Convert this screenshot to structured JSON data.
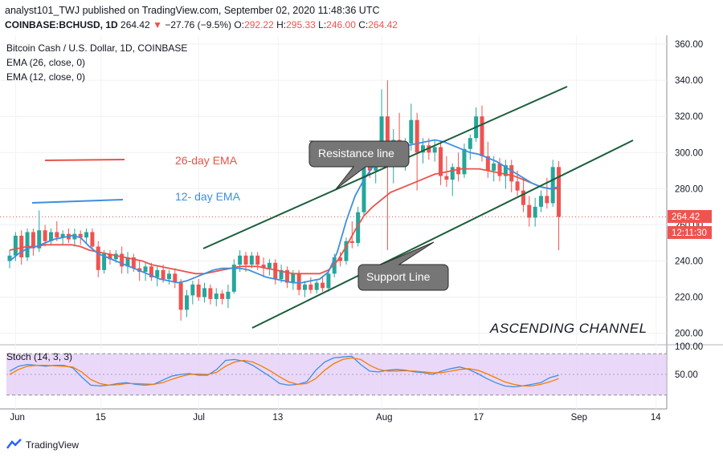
{
  "header": {
    "publisher_line": "analyst101_TWJ published on TradingView.com, September 02, 2020 11:48:36 UTC",
    "symbol": "COINBASE:BCHUSD, 1D",
    "last": "264.42",
    "change_arrow": "▼",
    "change": "−27.76 (−9.5%)",
    "open_label": "O:",
    "open": "292.22",
    "high_label": "H:",
    "high": "295.33",
    "low_label": "L:",
    "low": "246.00",
    "close_label": "C:",
    "close": "264.42"
  },
  "legend": {
    "instrument": "Bitcoin Cash / U.S. Dollar, 1D, COINBASE",
    "ema26_label": "EMA (26, close, 0)",
    "ema12_label": "EMA (12, close, 0)",
    "stoch_label": "Stoch (14, 3, 3)"
  },
  "annotations": {
    "ema26_text": "26-day EMA",
    "ema12_text": "12- day EMA",
    "resistance": "Resistance line",
    "support": "Support Line",
    "channel": "ASCENDING CHANNEL",
    "ema26_color": "#e8534a",
    "ema12_color": "#3d8fe0",
    "channel_color": "#1a5e3a"
  },
  "price_badges": {
    "last": "264.42",
    "countdown": "12:11:30"
  },
  "footer": {
    "brand": "TradingView"
  },
  "chart_data": [
    {
      "type": "candlestick",
      "title": "Bitcoin Cash / U.S. Dollar, 1D, COINBASE",
      "x_tick_labels": [
        "Jun",
        "15",
        "Jul",
        "13",
        "Aug",
        "17",
        "Sep",
        "14"
      ],
      "y_tick_labels": [
        "200.00",
        "220.00",
        "240.00",
        "260.00",
        "280.00",
        "300.00",
        "320.00",
        "340.00",
        "360.00"
      ],
      "ylim": [
        195,
        364
      ],
      "date_range": [
        "2020-05-29",
        "2020-09-02"
      ],
      "candles": [
        {
          "o": 240,
          "h": 246,
          "l": 236,
          "c": 243
        },
        {
          "o": 243,
          "h": 256,
          "l": 240,
          "c": 254
        },
        {
          "o": 254,
          "h": 257,
          "l": 238,
          "c": 242
        },
        {
          "o": 242,
          "h": 258,
          "l": 240,
          "c": 256
        },
        {
          "o": 256,
          "h": 258,
          "l": 243,
          "c": 247
        },
        {
          "o": 247,
          "h": 268,
          "l": 245,
          "c": 257
        },
        {
          "o": 257,
          "h": 260,
          "l": 248,
          "c": 251
        },
        {
          "o": 251,
          "h": 258,
          "l": 249,
          "c": 256
        },
        {
          "o": 256,
          "h": 262,
          "l": 251,
          "c": 253
        },
        {
          "o": 253,
          "h": 257,
          "l": 249,
          "c": 255
        },
        {
          "o": 255,
          "h": 258,
          "l": 250,
          "c": 252
        },
        {
          "o": 252,
          "h": 258,
          "l": 248,
          "c": 255
        },
        {
          "o": 255,
          "h": 257,
          "l": 249,
          "c": 253
        },
        {
          "o": 253,
          "h": 258,
          "l": 250,
          "c": 256
        },
        {
          "o": 256,
          "h": 258,
          "l": 247,
          "c": 248
        },
        {
          "o": 248,
          "h": 251,
          "l": 231,
          "c": 235
        },
        {
          "o": 235,
          "h": 246,
          "l": 233,
          "c": 244
        },
        {
          "o": 244,
          "h": 246,
          "l": 238,
          "c": 241
        },
        {
          "o": 241,
          "h": 246,
          "l": 239,
          "c": 244
        },
        {
          "o": 244,
          "h": 248,
          "l": 233,
          "c": 237
        },
        {
          "o": 237,
          "h": 245,
          "l": 233,
          "c": 242
        },
        {
          "o": 242,
          "h": 244,
          "l": 234,
          "c": 236
        },
        {
          "o": 236,
          "h": 240,
          "l": 229,
          "c": 234
        },
        {
          "o": 234,
          "h": 239,
          "l": 229,
          "c": 237
        },
        {
          "o": 237,
          "h": 239,
          "l": 229,
          "c": 231
        },
        {
          "o": 231,
          "h": 237,
          "l": 226,
          "c": 235
        },
        {
          "o": 235,
          "h": 238,
          "l": 228,
          "c": 230
        },
        {
          "o": 230,
          "h": 235,
          "l": 227,
          "c": 233
        },
        {
          "o": 233,
          "h": 236,
          "l": 225,
          "c": 228
        },
        {
          "o": 228,
          "h": 230,
          "l": 207,
          "c": 213
        },
        {
          "o": 213,
          "h": 224,
          "l": 209,
          "c": 221
        },
        {
          "o": 221,
          "h": 229,
          "l": 216,
          "c": 227
        },
        {
          "o": 227,
          "h": 230,
          "l": 218,
          "c": 220
        },
        {
          "o": 220,
          "h": 228,
          "l": 217,
          "c": 225
        },
        {
          "o": 225,
          "h": 227,
          "l": 216,
          "c": 219
        },
        {
          "o": 219,
          "h": 225,
          "l": 215,
          "c": 222
        },
        {
          "o": 222,
          "h": 224,
          "l": 216,
          "c": 219
        },
        {
          "o": 219,
          "h": 227,
          "l": 214,
          "c": 223
        },
        {
          "o": 223,
          "h": 241,
          "l": 222,
          "c": 238
        },
        {
          "o": 238,
          "h": 246,
          "l": 234,
          "c": 243
        },
        {
          "o": 243,
          "h": 245,
          "l": 234,
          "c": 238
        },
        {
          "o": 238,
          "h": 245,
          "l": 236,
          "c": 243
        },
        {
          "o": 243,
          "h": 245,
          "l": 235,
          "c": 238
        },
        {
          "o": 238,
          "h": 242,
          "l": 231,
          "c": 236
        },
        {
          "o": 236,
          "h": 241,
          "l": 232,
          "c": 239
        },
        {
          "o": 239,
          "h": 241,
          "l": 227,
          "c": 230
        },
        {
          "o": 230,
          "h": 238,
          "l": 228,
          "c": 235
        },
        {
          "o": 235,
          "h": 237,
          "l": 225,
          "c": 228
        },
        {
          "o": 228,
          "h": 235,
          "l": 224,
          "c": 233
        },
        {
          "o": 233,
          "h": 235,
          "l": 221,
          "c": 224
        },
        {
          "o": 224,
          "h": 229,
          "l": 220,
          "c": 227
        },
        {
          "o": 227,
          "h": 231,
          "l": 222,
          "c": 224
        },
        {
          "o": 224,
          "h": 230,
          "l": 222,
          "c": 228
        },
        {
          "o": 228,
          "h": 231,
          "l": 223,
          "c": 225
        },
        {
          "o": 225,
          "h": 235,
          "l": 223,
          "c": 233
        },
        {
          "o": 233,
          "h": 244,
          "l": 231,
          "c": 242
        },
        {
          "o": 242,
          "h": 245,
          "l": 237,
          "c": 240
        },
        {
          "o": 240,
          "h": 253,
          "l": 238,
          "c": 251
        },
        {
          "o": 251,
          "h": 262,
          "l": 247,
          "c": 250
        },
        {
          "o": 250,
          "h": 270,
          "l": 248,
          "c": 267
        },
        {
          "o": 267,
          "h": 300,
          "l": 265,
          "c": 295
        },
        {
          "o": 295,
          "h": 306,
          "l": 286,
          "c": 290
        },
        {
          "o": 290,
          "h": 303,
          "l": 283,
          "c": 298
        },
        {
          "o": 298,
          "h": 335,
          "l": 293,
          "c": 320
        },
        {
          "o": 320,
          "h": 340,
          "l": 246,
          "c": 295
        },
        {
          "o": 295,
          "h": 313,
          "l": 283,
          "c": 307
        },
        {
          "o": 307,
          "h": 322,
          "l": 295,
          "c": 298
        },
        {
          "o": 298,
          "h": 308,
          "l": 290,
          "c": 305
        },
        {
          "o": 305,
          "h": 327,
          "l": 301,
          "c": 318
        },
        {
          "o": 318,
          "h": 322,
          "l": 279,
          "c": 300
        },
        {
          "o": 300,
          "h": 308,
          "l": 294,
          "c": 304
        },
        {
          "o": 304,
          "h": 308,
          "l": 296,
          "c": 300
        },
        {
          "o": 300,
          "h": 307,
          "l": 295,
          "c": 303
        },
        {
          "o": 303,
          "h": 306,
          "l": 282,
          "c": 287
        },
        {
          "o": 287,
          "h": 298,
          "l": 281,
          "c": 285
        },
        {
          "o": 285,
          "h": 294,
          "l": 276,
          "c": 292
        },
        {
          "o": 292,
          "h": 300,
          "l": 284,
          "c": 288
        },
        {
          "o": 288,
          "h": 305,
          "l": 286,
          "c": 302
        },
        {
          "o": 302,
          "h": 310,
          "l": 296,
          "c": 308
        },
        {
          "o": 308,
          "h": 325,
          "l": 306,
          "c": 320
        },
        {
          "o": 320,
          "h": 326,
          "l": 295,
          "c": 298
        },
        {
          "o": 298,
          "h": 306,
          "l": 286,
          "c": 290
        },
        {
          "o": 290,
          "h": 298,
          "l": 284,
          "c": 294
        },
        {
          "o": 294,
          "h": 297,
          "l": 284,
          "c": 287
        },
        {
          "o": 287,
          "h": 296,
          "l": 280,
          "c": 293
        },
        {
          "o": 293,
          "h": 296,
          "l": 278,
          "c": 284
        },
        {
          "o": 284,
          "h": 290,
          "l": 276,
          "c": 279
        },
        {
          "o": 279,
          "h": 286,
          "l": 267,
          "c": 271
        },
        {
          "o": 271,
          "h": 276,
          "l": 259,
          "c": 264
        },
        {
          "o": 264,
          "h": 275,
          "l": 259,
          "c": 270
        },
        {
          "o": 270,
          "h": 279,
          "l": 267,
          "c": 276
        },
        {
          "o": 276,
          "h": 286,
          "l": 269,
          "c": 272
        },
        {
          "o": 272,
          "h": 296,
          "l": 270,
          "c": 292
        },
        {
          "o": 292,
          "h": 295.33,
          "l": 246,
          "c": 264.42
        }
      ],
      "series": [
        {
          "name": "EMA (26, close, 0)",
          "color": "#e8534a",
          "values": [
            246,
            247,
            248,
            248,
            249,
            249,
            249,
            249,
            248,
            246,
            245,
            244,
            243,
            242,
            241,
            240,
            238,
            237,
            236,
            235,
            234,
            233,
            233,
            234,
            235,
            236,
            237,
            237,
            237,
            236,
            235,
            234,
            233,
            233,
            233,
            233,
            235,
            240,
            248,
            257,
            265,
            270,
            274,
            278,
            280,
            282,
            284,
            286,
            288,
            289,
            290,
            291,
            291,
            291,
            290,
            289,
            288,
            287,
            285,
            283,
            281,
            280,
            280
          ]
        },
        {
          "name": "EMA (12, close, 0)",
          "color": "#3d8fe0",
          "values": [
            240,
            244,
            247,
            248,
            250,
            252,
            253,
            254,
            253,
            248,
            244,
            242,
            240,
            238,
            236,
            234,
            232,
            230,
            229,
            228,
            229,
            231,
            233,
            235,
            236,
            236,
            236,
            235,
            233,
            231,
            230,
            229,
            228,
            228,
            229,
            230,
            234,
            245,
            262,
            276,
            285,
            292,
            296,
            299,
            301,
            304,
            305,
            306,
            307,
            306,
            304,
            302,
            300,
            299,
            297,
            295,
            292,
            289,
            286,
            283,
            281,
            280,
            281
          ]
        },
        {
          "name": "Stoch %K",
          "values": [
            58,
            70,
            74,
            72,
            70,
            72,
            72,
            66,
            44,
            24,
            22,
            24,
            28,
            30,
            26,
            24,
            26,
            36,
            46,
            50,
            52,
            48,
            48,
            62,
            84,
            86,
            82,
            72,
            58,
            44,
            28,
            24,
            26,
            32,
            60,
            80,
            90,
            92,
            94,
            74,
            58,
            56,
            60,
            62,
            60,
            56,
            54,
            50,
            58,
            64,
            68,
            62,
            52,
            40,
            30,
            22,
            20,
            22,
            26,
            30,
            42,
            48
          ]
        },
        {
          "name": "Stoch %D",
          "values": [
            50,
            62,
            70,
            72,
            72,
            71,
            70,
            68,
            56,
            38,
            28,
            24,
            25,
            28,
            28,
            27,
            26,
            30,
            38,
            45,
            50,
            51,
            50,
            55,
            70,
            80,
            84,
            80,
            70,
            58,
            44,
            32,
            26,
            28,
            40,
            60,
            76,
            86,
            90,
            86,
            72,
            62,
            58,
            58,
            59,
            58,
            56,
            54,
            54,
            58,
            62,
            64,
            60,
            52,
            42,
            32,
            26,
            22,
            22,
            26,
            32,
            40
          ]
        }
      ],
      "stoch_y_tick_labels": [
        "50.00",
        "100.00"
      ]
    }
  ]
}
